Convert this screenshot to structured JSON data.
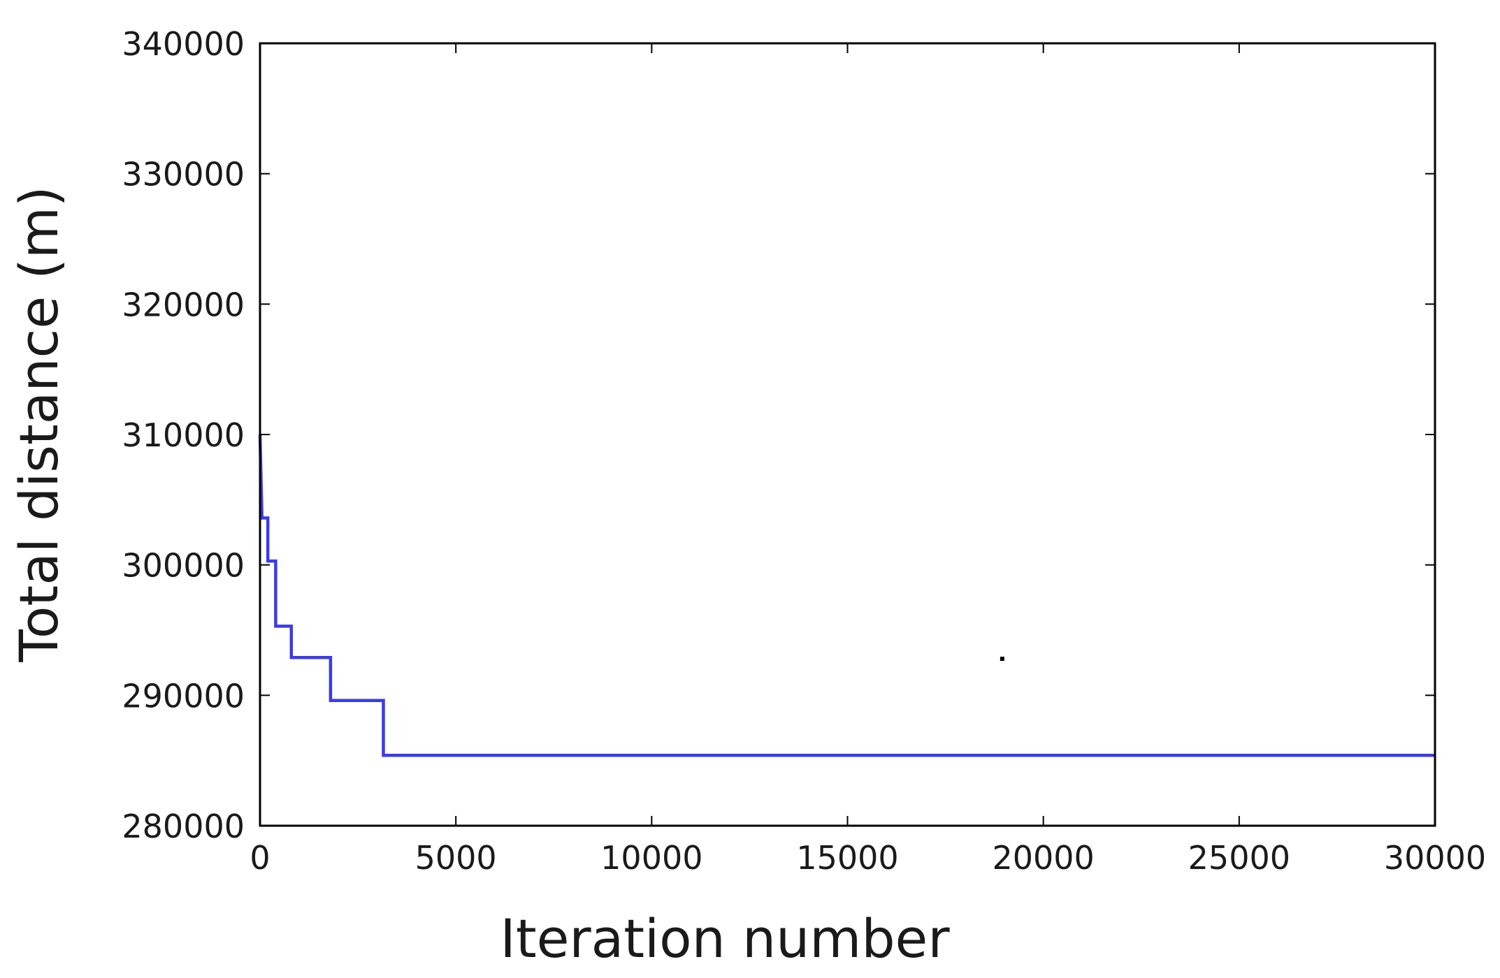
{
  "chart_data": {
    "type": "line",
    "title": "",
    "xlabel": "Iteration number",
    "ylabel": "Total distance (m)",
    "xlim": [
      0,
      30000
    ],
    "ylim": [
      280000,
      340000
    ],
    "x_ticks": [
      0,
      5000,
      10000,
      15000,
      20000,
      25000,
      30000
    ],
    "y_ticks": [
      280000,
      290000,
      300000,
      310000,
      320000,
      330000,
      340000
    ],
    "grid": false,
    "legend": "none",
    "series": [
      {
        "color": "#2a2ae8",
        "points": [
          [
            0,
            310000
          ],
          [
            50,
            303600
          ],
          [
            200,
            303600
          ],
          [
            200,
            300300
          ],
          [
            400,
            300300
          ],
          [
            400,
            295300
          ],
          [
            800,
            295300
          ],
          [
            800,
            292900
          ],
          [
            1800,
            292900
          ],
          [
            1800,
            289600
          ],
          [
            3150,
            289600
          ],
          [
            3150,
            285400
          ],
          [
            30000,
            285400
          ]
        ]
      }
    ],
    "annotation_points": [
      {
        "x": 18950,
        "y": 292800,
        "color": "#000000"
      }
    ]
  }
}
